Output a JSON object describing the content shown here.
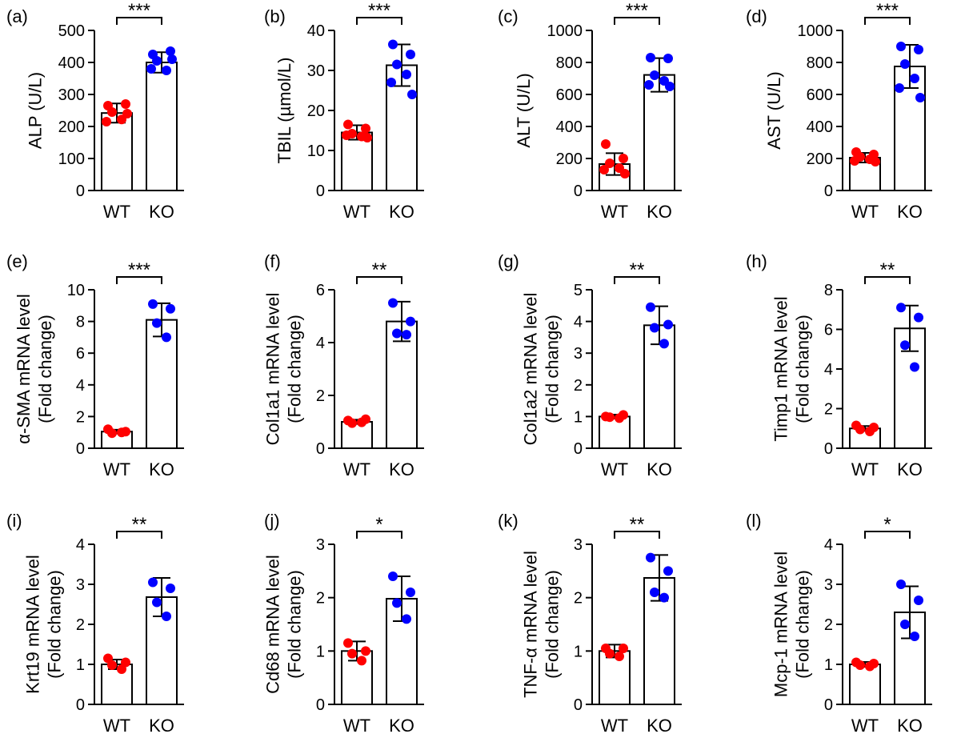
{
  "colors": {
    "wt_points": "#ff0000",
    "ko_points": "#0000ff",
    "bars": "#000000",
    "background": "#ffffff"
  },
  "chart_data": [
    {
      "panel": "(a)",
      "type": "bar",
      "ylabel": [
        "ALP (U/L)"
      ],
      "categories": [
        "WT",
        "KO"
      ],
      "ylim": [
        0,
        500
      ],
      "yticks": [
        0,
        100,
        200,
        300,
        400,
        500
      ],
      "means": [
        242,
        400
      ],
      "errors": [
        30,
        32
      ],
      "significance": "***",
      "points": [
        [
          265,
          270,
          245,
          222,
          215,
          240
        ],
        [
          425,
          435,
          405,
          375,
          380,
          410
        ]
      ]
    },
    {
      "panel": "(b)",
      "type": "bar",
      "ylabel": [
        "TBIL (µmol/L)"
      ],
      "categories": [
        "WT",
        "KO"
      ],
      "ylim": [
        0,
        40
      ],
      "yticks": [
        0,
        10,
        20,
        30,
        40
      ],
      "means": [
        14.5,
        31.3
      ],
      "errors": [
        1.8,
        5.2
      ],
      "significance": "***",
      "points": [
        [
          16.5,
          15.5,
          14.2,
          13.5,
          13.8,
          13.2
        ],
        [
          36.5,
          34.0,
          31.5,
          29.0,
          27.0,
          24.0
        ]
      ]
    },
    {
      "panel": "(c)",
      "type": "bar",
      "ylabel": [
        "ALT (U/L)"
      ],
      "categories": [
        "WT",
        "KO"
      ],
      "ylim": [
        0,
        1000
      ],
      "yticks": [
        0,
        200,
        400,
        600,
        800,
        1000
      ],
      "means": [
        165,
        722
      ],
      "errors": [
        68,
        105
      ],
      "significance": "***",
      "points": [
        [
          290,
          200,
          170,
          140,
          130,
          105
        ],
        [
          830,
          825,
          720,
          685,
          660,
          650
        ]
      ]
    },
    {
      "panel": "(d)",
      "type": "bar",
      "ylabel": [
        "AST (U/L)"
      ],
      "categories": [
        "WT",
        "KO"
      ],
      "ylim": [
        0,
        1000
      ],
      "yticks": [
        0,
        200,
        400,
        600,
        800,
        1000
      ],
      "means": [
        205,
        775
      ],
      "errors": [
        30,
        135
      ],
      "significance": "***",
      "points": [
        [
          240,
          225,
          210,
          195,
          185,
          180
        ],
        [
          900,
          880,
          790,
          700,
          640,
          580
        ]
      ]
    },
    {
      "panel": "(e)",
      "type": "bar",
      "ylabel": [
        "α-SMA mRNA level",
        "(Fold change)"
      ],
      "categories": [
        "WT",
        "KO"
      ],
      "ylim": [
        0,
        10
      ],
      "yticks": [
        0,
        2,
        4,
        6,
        8,
        10
      ],
      "means": [
        1.05,
        8.1
      ],
      "errors": [
        0.12,
        1.05
      ],
      "significance": "***",
      "points": [
        [
          1.2,
          1.05,
          0.95,
          1.0
        ],
        [
          9.1,
          8.8,
          7.9,
          7.0
        ]
      ]
    },
    {
      "panel": "(f)",
      "type": "bar",
      "ylabel": [
        "Col1a1 mRNA level",
        "(Fold change)"
      ],
      "categories": [
        "WT",
        "KO"
      ],
      "ylim": [
        0,
        6
      ],
      "yticks": [
        0,
        2,
        4,
        6
      ],
      "means": [
        1.0,
        4.8
      ],
      "errors": [
        0.08,
        0.75
      ],
      "significance": "**",
      "points": [
        [
          1.05,
          1.1,
          0.95,
          0.98
        ],
        [
          5.5,
          4.8,
          4.35,
          4.3
        ]
      ]
    },
    {
      "panel": "(g)",
      "type": "bar",
      "ylabel": [
        "Col1a2 mRNA level",
        "(Fold change)"
      ],
      "categories": [
        "WT",
        "KO"
      ],
      "ylim": [
        0,
        5
      ],
      "yticks": [
        0,
        1,
        2,
        3,
        4,
        5
      ],
      "means": [
        1.0,
        3.88
      ],
      "errors": [
        0.06,
        0.6
      ],
      "significance": "**",
      "points": [
        [
          1.0,
          1.05,
          0.98,
          0.95
        ],
        [
          4.45,
          3.9,
          3.8,
          3.3
        ]
      ]
    },
    {
      "panel": "(h)",
      "type": "bar",
      "ylabel": [
        "Timp1 mRNA level",
        "(Fold change)"
      ],
      "categories": [
        "WT",
        "KO"
      ],
      "ylim": [
        0,
        8
      ],
      "yticks": [
        0,
        2,
        4,
        6,
        8
      ],
      "means": [
        1.0,
        6.05
      ],
      "errors": [
        0.12,
        1.15
      ],
      "significance": "**",
      "points": [
        [
          1.15,
          1.05,
          0.95,
          0.85
        ],
        [
          7.1,
          6.6,
          5.2,
          4.1
        ]
      ]
    },
    {
      "panel": "(i)",
      "type": "bar",
      "ylabel": [
        "Krt19 mRNA level",
        "(Fold change)"
      ],
      "categories": [
        "WT",
        "KO"
      ],
      "ylim": [
        0,
        4
      ],
      "yticks": [
        0,
        1,
        2,
        3,
        4
      ],
      "means": [
        1.0,
        2.68
      ],
      "errors": [
        0.12,
        0.48
      ],
      "significance": "**",
      "points": [
        [
          1.15,
          1.05,
          0.98,
          0.88
        ],
        [
          3.05,
          2.9,
          2.55,
          2.2
        ]
      ]
    },
    {
      "panel": "(j)",
      "type": "bar",
      "ylabel": [
        "Cd68 mRNA level",
        "(Fold change)"
      ],
      "categories": [
        "WT",
        "KO"
      ],
      "ylim": [
        0,
        3
      ],
      "yticks": [
        0,
        1,
        2,
        3
      ],
      "means": [
        1.0,
        1.98
      ],
      "errors": [
        0.18,
        0.42
      ],
      "significance": "*",
      "points": [
        [
          1.15,
          1.0,
          0.95,
          0.82
        ],
        [
          2.4,
          2.1,
          1.9,
          1.6
        ]
      ]
    },
    {
      "panel": "(k)",
      "type": "bar",
      "ylabel": [
        "TNF-α mRNA level",
        "(Fold change)"
      ],
      "categories": [
        "WT",
        "KO"
      ],
      "ylim": [
        0,
        3
      ],
      "yticks": [
        0,
        1,
        2,
        3
      ],
      "means": [
        1.0,
        2.37
      ],
      "errors": [
        0.12,
        0.43
      ],
      "significance": "**",
      "points": [
        [
          1.05,
          1.05,
          0.95,
          0.9
        ],
        [
          2.75,
          2.5,
          2.1,
          2.0
        ]
      ]
    },
    {
      "panel": "(l)",
      "type": "bar",
      "ylabel": [
        "Mcp-1 mRNA level",
        "(Fold change)"
      ],
      "categories": [
        "WT",
        "KO"
      ],
      "ylim": [
        0,
        4
      ],
      "yticks": [
        0,
        1,
        2,
        3,
        4
      ],
      "means": [
        1.0,
        2.3
      ],
      "errors": [
        0.06,
        0.65
      ],
      "significance": "*",
      "points": [
        [
          1.05,
          1.02,
          0.98,
          0.95
        ],
        [
          3.0,
          2.6,
          2.0,
          1.7
        ]
      ]
    }
  ]
}
